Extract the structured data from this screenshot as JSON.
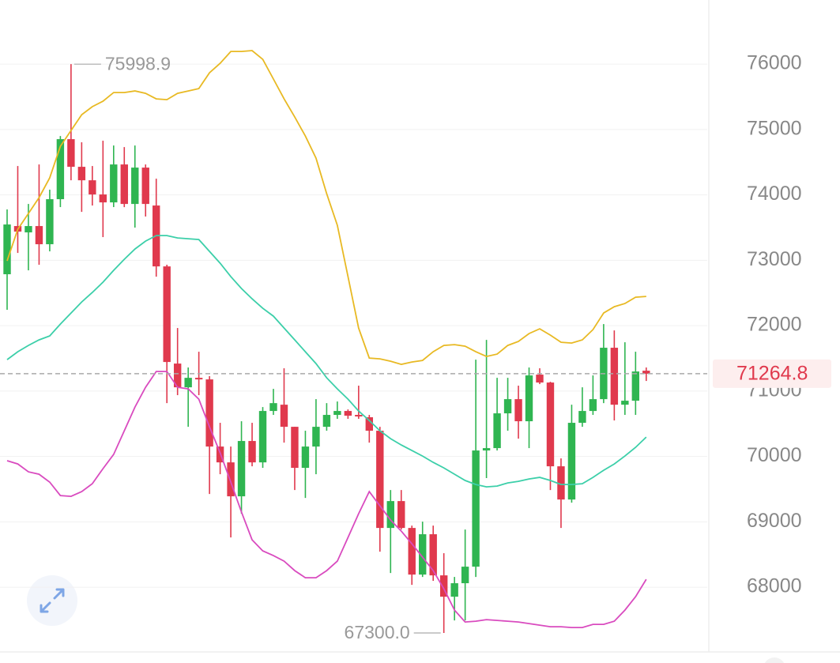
{
  "chart_data": {
    "type": "candlestick",
    "ylim": [
      67010,
      76980
    ],
    "yticks": [
      68000,
      69000,
      70000,
      71000,
      72000,
      73000,
      74000,
      75000,
      76000
    ],
    "grid": true,
    "up_color": "#2fb551",
    "down_color": "#e0394d",
    "open": [
      72786,
      73523,
      73426,
      73523,
      73245,
      73934,
      74852,
      74429,
      74223,
      74006,
      73885,
      74465,
      73861,
      74417,
      73837,
      72906,
      71420,
      71057,
      71202,
      71178,
      70151,
      69909,
      69390,
      70236,
      69909,
      70695,
      70791,
      70453,
      69825,
      70151,
      70453,
      70635,
      70695,
      70635,
      70599,
      70393,
      68906,
      69317,
      68906,
      68193,
      68810,
      68181,
      67855,
      68061,
      68314,
      70091,
      70127,
      70659,
      70876,
      70538,
      71251,
      71130,
      69849,
      69341,
      70514,
      70695,
      70876,
      71662,
      70791,
      70852,
      71311
    ],
    "high": [
      73777,
      74441,
      73861,
      74465,
      74079,
      74900,
      75998.9,
      74804,
      74441,
      74828,
      74755,
      74731,
      74755,
      74465,
      74248,
      72931,
      71964,
      71360,
      71601,
      71227,
      70514,
      70151,
      70538,
      70514,
      70755,
      71033,
      71348,
      70453,
      70393,
      70876,
      70815,
      70840,
      70719,
      71082,
      70635,
      70453,
      69486,
      69486,
      68942,
      69003,
      68942,
      68520,
      68157,
      68882,
      71480,
      71782,
      71202,
      71202,
      71082,
      71360,
      71348,
      71142,
      69970,
      70791,
      71057,
      71239,
      72024,
      71927,
      71746,
      71601,
      71360
    ],
    "low": [
      72242,
      73112,
      72846,
      72931,
      73136,
      73813,
      74223,
      73740,
      73837,
      73354,
      73813,
      73813,
      73499,
      73668,
      72749,
      70815,
      70937,
      70453,
      70937,
      69426,
      69728,
      68761,
      69124,
      69849,
      69825,
      70635,
      70211,
      69486,
      69365,
      69728,
      70393,
      70575,
      70575,
      70575,
      70211,
      68544,
      68217,
      68882,
      68036,
      68157,
      68097,
      67300,
      67492,
      67492,
      68157,
      69668,
      70091,
      70393,
      70272,
      70127,
      71106,
      69486,
      68906,
      69293,
      70453,
      70635,
      70815,
      70550,
      70635,
      70635,
      71154
    ],
    "close": [
      73547,
      73438,
      73523,
      73245,
      73934,
      74852,
      74429,
      74223,
      74006,
      73885,
      74465,
      73861,
      74417,
      73861,
      72906,
      71444,
      71057,
      71202,
      71178,
      70151,
      69909,
      69390,
      70236,
      69909,
      70695,
      70815,
      70453,
      69825,
      70151,
      70453,
      70635,
      70695,
      70623,
      70611,
      70393,
      68906,
      69317,
      68906,
      68193,
      68810,
      68181,
      67855,
      68061,
      68314,
      70091,
      70127,
      70659,
      70876,
      70538,
      71239,
      71130,
      69849,
      69341,
      70514,
      70695,
      70876,
      71662,
      70791,
      70852,
      71299,
      71264.8
    ],
    "bands": [
      {
        "color": "#e8b923",
        "values": [
          72991,
          73474,
          73716,
          73958,
          74260,
          74743,
          74985,
          75227,
          75348,
          75432,
          75565,
          75565,
          75589,
          75553,
          75468,
          75456,
          75553,
          75589,
          75625,
          75867,
          76012,
          76193,
          76193,
          76206,
          76073,
          75771,
          75468,
          75190,
          74900,
          74562,
          74018,
          73535,
          72749,
          71964,
          71504,
          71492,
          71456,
          71408,
          71444,
          71468,
          71601,
          71698,
          71710,
          71686,
          71601,
          71529,
          71565,
          71698,
          71758,
          71879,
          71952,
          71855,
          71746,
          71734,
          71782,
          71940,
          72193,
          72290,
          72338,
          72435,
          72447
        ]
      },
      {
        "color": "#3ccfa9",
        "values": [
          71480,
          71601,
          71698,
          71782,
          71843,
          72024,
          72193,
          72362,
          72508,
          72665,
          72846,
          73015,
          73172,
          73293,
          73378,
          73378,
          73341,
          73329,
          73317,
          73136,
          72955,
          72749,
          72568,
          72411,
          72266,
          72145,
          71964,
          71782,
          71601,
          71420,
          71202,
          71033,
          70876,
          70695,
          70550,
          70393,
          70272,
          70175,
          70091,
          70006,
          69909,
          69825,
          69728,
          69632,
          69571,
          69535,
          69547,
          69595,
          69619,
          69655,
          69680,
          69632,
          69571,
          69571,
          69583,
          69680,
          69788,
          69885,
          70006,
          70139,
          70296
        ]
      },
      {
        "color": "#d94bbf",
        "values": [
          69934,
          69885,
          69764,
          69728,
          69607,
          69402,
          69390,
          69462,
          69583,
          69813,
          70030,
          70393,
          70755,
          71057,
          71299,
          71299,
          71057,
          71033,
          70876,
          70453,
          70054,
          69607,
          69148,
          68725,
          68556,
          68483,
          68399,
          68254,
          68145,
          68145,
          68254,
          68399,
          68761,
          69124,
          69462,
          69245,
          69027,
          68858,
          68664,
          68459,
          68254,
          67976,
          67649,
          67468,
          67480,
          67504,
          67492,
          67480,
          67468,
          67444,
          67420,
          67395,
          67395,
          67383,
          67383,
          67432,
          67432,
          67480,
          67649,
          67855,
          68121
        ]
      }
    ],
    "current_price": 71264.8,
    "annotations": [
      {
        "value": 75998.9,
        "label": "75998.9"
      },
      {
        "value": 67300,
        "label": "67300.0"
      }
    ]
  }
}
